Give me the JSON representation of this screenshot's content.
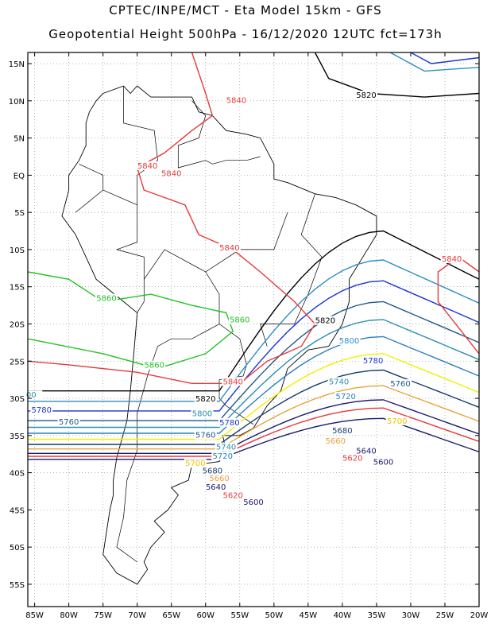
{
  "header": {
    "line1": "CPTEC/INPE/MCT -  Eta Model 15km - GFS",
    "line2": "Geopotential Height 500hPa - 16/12/2020 12UTC fct=173h"
  },
  "axes": {
    "lat_ticks": [
      "15N",
      "10N",
      "5N",
      "EQ",
      "5S",
      "10S",
      "15S",
      "20S",
      "25S",
      "30S",
      "35S",
      "40S",
      "45S",
      "50S",
      "55S"
    ],
    "lat_values": [
      15,
      10,
      5,
      0,
      -5,
      -10,
      -15,
      -20,
      -25,
      -30,
      -35,
      -40,
      -45,
      -50,
      -55
    ],
    "lon_ticks": [
      "85W",
      "80W",
      "75W",
      "70W",
      "65W",
      "60W",
      "55W",
      "50W",
      "45W",
      "40W",
      "35W",
      "30W",
      "25W",
      "20W"
    ],
    "lon_values": [
      -85,
      -80,
      -75,
      -70,
      -65,
      -60,
      -55,
      -50,
      -45,
      -40,
      -35,
      -30,
      -25,
      -20
    ],
    "lat_range": [
      -58,
      16.5
    ],
    "lon_range": [
      -86,
      -20
    ]
  },
  "contours": [
    {
      "level": "5600",
      "color": "#1a1a6e"
    },
    {
      "level": "5620",
      "color": "#e8393a"
    },
    {
      "level": "5640",
      "color": "#1a1a6e"
    },
    {
      "level": "5660",
      "color": "#e8a33a"
    },
    {
      "level": "5680",
      "color": "#173a6e"
    },
    {
      "level": "5700",
      "color": "#f0f000"
    },
    {
      "level": "5720",
      "color": "#2a7fc0"
    },
    {
      "level": "5740",
      "color": "#2a8fb0"
    },
    {
      "level": "5760",
      "color": "#1f5a8a"
    },
    {
      "level": "5780",
      "color": "#1a35d0"
    },
    {
      "level": "5800",
      "color": "#2f8fc0"
    },
    {
      "level": "5820",
      "color": "#000000"
    },
    {
      "level": "5840",
      "color": "#e8393a"
    },
    {
      "level": "5860",
      "color": "#22c322"
    }
  ],
  "contour_labels": [
    {
      "text": "5820",
      "lon": -36.5,
      "lat": 10.5,
      "color": "#000000"
    },
    {
      "text": "5840",
      "lon": -55.5,
      "lat": 9.8,
      "color": "#e8393a"
    },
    {
      "text": "5840",
      "lon": -68.5,
      "lat": 1,
      "color": "#e8393a"
    },
    {
      "text": "5840",
      "lon": -65,
      "lat": 0,
      "color": "#e8393a"
    },
    {
      "text": "5840",
      "lon": -56.5,
      "lat": -10,
      "color": "#e8393a"
    },
    {
      "text": "5840",
      "lon": -24,
      "lat": -11.5,
      "color": "#e8393a"
    },
    {
      "text": "5860",
      "lon": -74.5,
      "lat": -16.8,
      "color": "#22c322"
    },
    {
      "text": "5860",
      "lon": -55,
      "lat": -19.7,
      "color": "#22c322"
    },
    {
      "text": "5860",
      "lon": -67.5,
      "lat": -25.8,
      "color": "#22c322"
    },
    {
      "text": "5840",
      "lon": -56,
      "lat": -28,
      "color": "#e8393a"
    },
    {
      "text": "5820",
      "lon": -42.5,
      "lat": -19.8,
      "color": "#000000"
    },
    {
      "text": "5800",
      "lon": -39,
      "lat": -22.5,
      "color": "#2f8fc0"
    },
    {
      "text": "5780",
      "lon": -35.5,
      "lat": -25.2,
      "color": "#1a35d0"
    },
    {
      "text": "5740",
      "lon": -40.5,
      "lat": -28,
      "color": "#2a8fb0"
    },
    {
      "text": "5760",
      "lon": -31.5,
      "lat": -28.3,
      "color": "#1f5a8a"
    },
    {
      "text": "5720",
      "lon": -39.5,
      "lat": -30,
      "color": "#2a7fc0"
    },
    {
      "text": "5700",
      "lon": -32,
      "lat": -33.3,
      "color": "#e8c800"
    },
    {
      "text": "5680",
      "lon": -40,
      "lat": -34.6,
      "color": "#173a6e"
    },
    {
      "text": "5660",
      "lon": -41,
      "lat": -36,
      "color": "#e8a33a"
    },
    {
      "text": "5640",
      "lon": -36.5,
      "lat": -37.3,
      "color": "#1a1a6e"
    },
    {
      "text": "5620",
      "lon": -38.5,
      "lat": -38.3,
      "color": "#e8393a"
    },
    {
      "text": "5600",
      "lon": -34,
      "lat": -38.8,
      "color": "#1a1a6e"
    },
    {
      "text": "5820",
      "lon": -60,
      "lat": -30.3,
      "color": "#000000"
    },
    {
      "text": "5800",
      "lon": -60.5,
      "lat": -32.3,
      "color": "#2a8fb0"
    },
    {
      "text": "5780",
      "lon": -56.5,
      "lat": -33.5,
      "color": "#1a35d0"
    },
    {
      "text": "5760",
      "lon": -60,
      "lat": -35.2,
      "color": "#1f5a8a"
    },
    {
      "text": "5740",
      "lon": -57,
      "lat": -36.8,
      "color": "#2a8fb0"
    },
    {
      "text": "5720",
      "lon": -57.5,
      "lat": -38,
      "color": "#2a7fc0"
    },
    {
      "text": "5700",
      "lon": -61.5,
      "lat": -39,
      "color": "#e8c800"
    },
    {
      "text": "5680",
      "lon": -59,
      "lat": -40,
      "color": "#173a6e"
    },
    {
      "text": "5660",
      "lon": -58,
      "lat": -41,
      "color": "#e8a33a"
    },
    {
      "text": "5640",
      "lon": -58.5,
      "lat": -42.2,
      "color": "#1a1a6e"
    },
    {
      "text": "5620",
      "lon": -56,
      "lat": -43.3,
      "color": "#e8393a"
    },
    {
      "text": "5600",
      "lon": -53,
      "lat": -44.2,
      "color": "#1a1a6e"
    },
    {
      "text": "5780",
      "lon": -84,
      "lat": -31.8,
      "color": "#1a35d0"
    },
    {
      "text": "5760",
      "lon": -80,
      "lat": -33.4,
      "color": "#1f5a8a"
    },
    {
      "text": "00",
      "lon": -85.5,
      "lat": -29.8,
      "color": "#2a8fb0"
    }
  ]
}
